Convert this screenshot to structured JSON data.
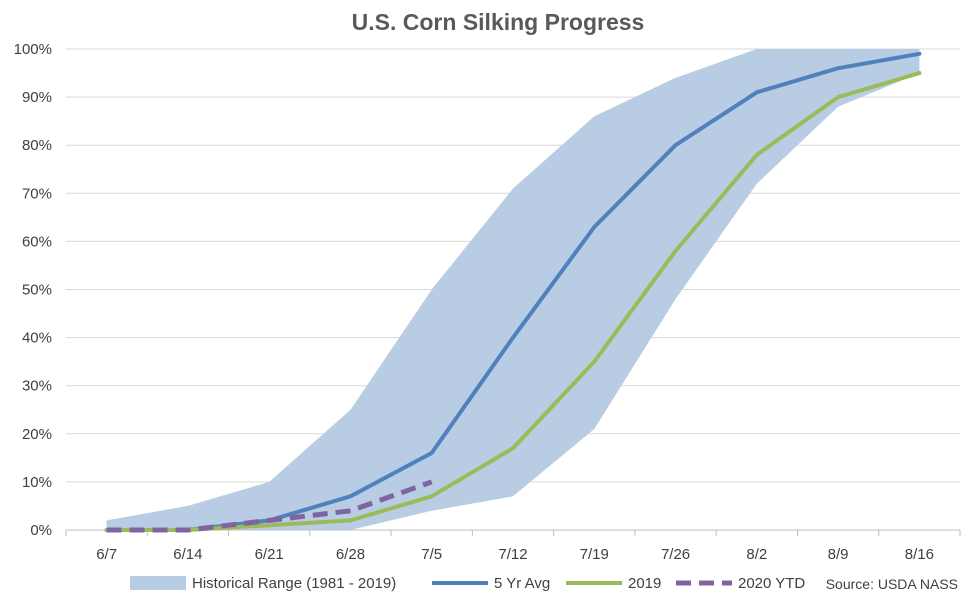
{
  "chart_data": {
    "type": "line",
    "title": "U.S. Corn Silking Progress",
    "source": "Source: USDA NASS",
    "categories": [
      "6/7",
      "6/14",
      "6/21",
      "6/28",
      "7/5",
      "7/12",
      "7/19",
      "7/26",
      "8/2",
      "8/9",
      "8/16"
    ],
    "y_ticks": [
      "0%",
      "10%",
      "20%",
      "30%",
      "40%",
      "50%",
      "60%",
      "70%",
      "80%",
      "90%",
      "100%"
    ],
    "ylim": [
      0,
      100
    ],
    "grid": true,
    "legend_position": "bottom",
    "range": {
      "name": "Historical Range (1981 - 2019)",
      "color": "#b8cce4",
      "low": [
        0,
        0,
        0,
        0,
        4,
        7,
        21,
        48,
        72,
        88,
        95
      ],
      "high": [
        2,
        5,
        10,
        25,
        50,
        71,
        86,
        94,
        100,
        100,
        100
      ]
    },
    "series": [
      {
        "name": "5 Yr Avg",
        "color": "#4f81bd",
        "dashed": false,
        "values": [
          0,
          0,
          2,
          7,
          16,
          40,
          63,
          80,
          91,
          96,
          99
        ]
      },
      {
        "name": "2019",
        "color": "#9bbb59",
        "dashed": false,
        "values": [
          0,
          0,
          1,
          2,
          7,
          17,
          35,
          58,
          78,
          90,
          95
        ]
      },
      {
        "name": "2020 YTD",
        "color": "#8064a2",
        "dashed": true,
        "values": [
          0,
          0,
          2,
          4,
          10,
          null,
          null,
          null,
          null,
          null,
          null
        ]
      }
    ]
  }
}
